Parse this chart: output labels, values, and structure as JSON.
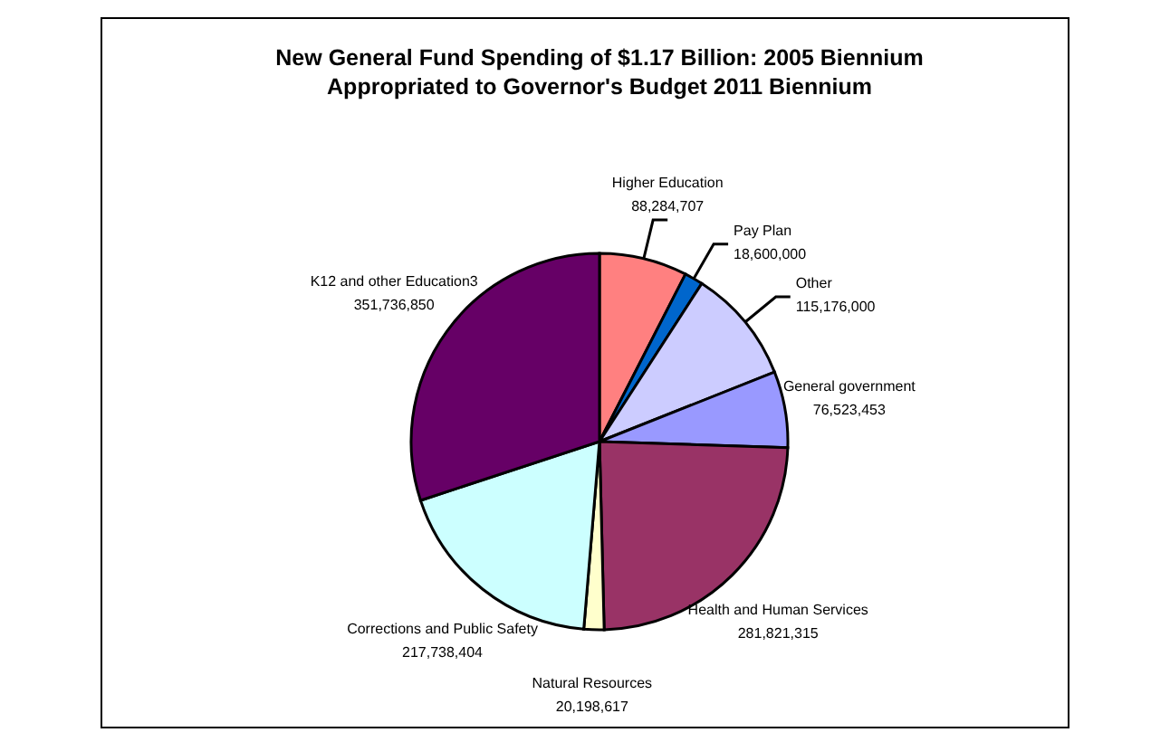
{
  "chart_data": {
    "type": "pie",
    "title": "New General Fund Spending of $1.17 Billion: 2005 Biennium\nAppropriated to Governor's Budget 2011 Biennium",
    "categories": [
      "Higher Education",
      "Pay Plan",
      "Other",
      "General government",
      "Health and Human Services",
      "Natural Resources",
      "Corrections and Public Safety",
      "K12 and other Education3"
    ],
    "values": [
      88284707,
      18600000,
      115176000,
      76523453,
      281821315,
      20198617,
      217738404,
      351736850
    ],
    "colors": [
      "#ff8080",
      "#0066cc",
      "#ccccff",
      "#9999ff",
      "#993366",
      "#ffffcc",
      "#ccffff",
      "#660066"
    ],
    "value_labels": [
      "88,284,707",
      "18,600,000",
      "115,176,000",
      "76,523,453",
      "281,821,315",
      "20,198,617",
      "217,738,404",
      "351,736,850"
    ],
    "legend": false
  }
}
